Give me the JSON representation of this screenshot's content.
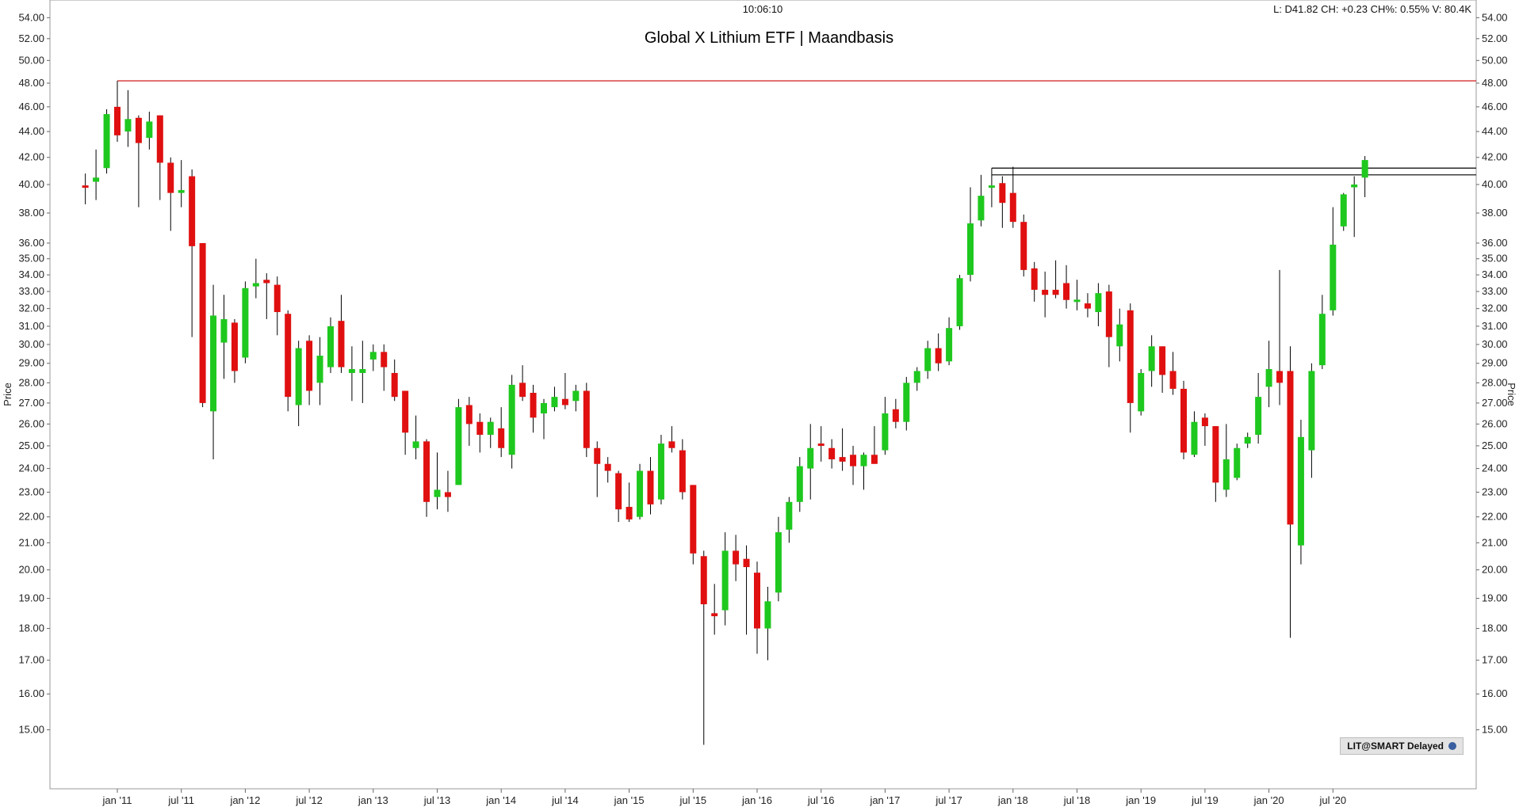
{
  "header": {
    "time": "10:06:10",
    "info": "L: D41.82 CH: +0.23 CH%: 0.55% V: 80.4K"
  },
  "badge": {
    "label": "LIT@SMART Delayed",
    "icon": "globe-icon"
  },
  "chart_data": {
    "type": "candlestick",
    "title": "Global X Lithium ETF | Maandbasis",
    "xlabel": "",
    "ylabel": "Price",
    "scale": "log",
    "ylim": [
      14.2,
      54.8
    ],
    "grid": false,
    "y_ticks": [
      "54.00",
      "52.00",
      "50.00",
      "48.00",
      "46.00",
      "44.00",
      "42.00",
      "40.00",
      "38.00",
      "36.00",
      "35.00",
      "34.00",
      "33.00",
      "32.00",
      "31.00",
      "30.00",
      "29.00",
      "28.00",
      "27.00",
      "26.00",
      "25.00",
      "24.00",
      "23.00",
      "22.00",
      "21.00",
      "20.00",
      "19.00",
      "18.00",
      "17.00",
      "16.00",
      "15.00"
    ],
    "x_tick_labels": [
      {
        "label": "jan '11",
        "month": 0
      },
      {
        "label": "jul '11",
        "month": 6
      },
      {
        "label": "jan '12",
        "month": 12
      },
      {
        "label": "jul '12",
        "month": 18
      },
      {
        "label": "jan '13",
        "month": 24
      },
      {
        "label": "jul '13",
        "month": 30
      },
      {
        "label": "jan '14",
        "month": 36
      },
      {
        "label": "jul '14",
        "month": 42
      },
      {
        "label": "jan '15",
        "month": 48
      },
      {
        "label": "jul '15",
        "month": 54
      },
      {
        "label": "jan '16",
        "month": 60
      },
      {
        "label": "jul '16",
        "month": 66
      },
      {
        "label": "jan '17",
        "month": 72
      },
      {
        "label": "jul '17",
        "month": 78
      },
      {
        "label": "jan '18",
        "month": 84
      },
      {
        "label": "jul '18",
        "month": 90
      },
      {
        "label": "jan '19",
        "month": 96
      },
      {
        "label": "jul '19",
        "month": 102
      },
      {
        "label": "jan '20",
        "month": 108
      },
      {
        "label": "jul '20",
        "month": 114
      }
    ],
    "colors": {
      "up": "#1ec81e",
      "down": "#e01010",
      "wick": "#000000",
      "resistance": "#cc0000",
      "level": "#000000"
    },
    "horizontal_lines": [
      {
        "value": 48.2,
        "from_month": 0,
        "color": "#cc0000"
      },
      {
        "value": 41.2,
        "from_month": 82,
        "color": "#000000"
      },
      {
        "value": 40.7,
        "from_month": 82,
        "color": "#000000"
      }
    ],
    "candles": [
      {
        "month": -3,
        "o": 39.9,
        "h": 40.8,
        "l": 38.6,
        "c": 39.8
      },
      {
        "month": -2,
        "o": 40.2,
        "h": 42.6,
        "l": 38.9,
        "c": 40.5
      },
      {
        "month": -1,
        "o": 41.2,
        "h": 45.8,
        "l": 40.8,
        "c": 45.4
      },
      {
        "month": 0,
        "o": 46.0,
        "h": 48.2,
        "l": 43.2,
        "c": 43.7
      },
      {
        "month": 1,
        "o": 44.0,
        "h": 47.4,
        "l": 42.8,
        "c": 45.0
      },
      {
        "month": 2,
        "o": 45.1,
        "h": 45.3,
        "l": 38.4,
        "c": 43.1
      },
      {
        "month": 3,
        "o": 43.5,
        "h": 45.6,
        "l": 42.6,
        "c": 44.8
      },
      {
        "month": 4,
        "o": 45.3,
        "h": 45.3,
        "l": 38.9,
        "c": 41.6
      },
      {
        "month": 5,
        "o": 41.6,
        "h": 42.0,
        "l": 36.8,
        "c": 39.4
      },
      {
        "month": 6,
        "o": 39.4,
        "h": 41.8,
        "l": 38.4,
        "c": 39.6
      },
      {
        "month": 7,
        "o": 40.6,
        "h": 41.1,
        "l": 30.4,
        "c": 35.8
      },
      {
        "month": 8,
        "o": 36.0,
        "h": 36.0,
        "l": 26.8,
        "c": 27.0
      },
      {
        "month": 9,
        "o": 26.6,
        "h": 33.4,
        "l": 24.4,
        "c": 31.6
      },
      {
        "month": 10,
        "o": 30.1,
        "h": 32.8,
        "l": 28.2,
        "c": 31.4
      },
      {
        "month": 11,
        "o": 31.2,
        "h": 31.4,
        "l": 28.0,
        "c": 28.6
      },
      {
        "month": 12,
        "o": 29.3,
        "h": 33.6,
        "l": 29.0,
        "c": 33.2
      },
      {
        "month": 13,
        "o": 33.3,
        "h": 35.0,
        "l": 32.6,
        "c": 33.5
      },
      {
        "month": 14,
        "o": 33.7,
        "h": 34.1,
        "l": 31.4,
        "c": 33.5
      },
      {
        "month": 15,
        "o": 33.4,
        "h": 33.9,
        "l": 30.5,
        "c": 31.8
      },
      {
        "month": 16,
        "o": 31.7,
        "h": 31.9,
        "l": 26.6,
        "c": 27.3
      },
      {
        "month": 17,
        "o": 26.9,
        "h": 30.2,
        "l": 25.9,
        "c": 29.8
      },
      {
        "month": 18,
        "o": 30.2,
        "h": 30.5,
        "l": 26.9,
        "c": 27.6
      },
      {
        "month": 19,
        "o": 28.0,
        "h": 30.4,
        "l": 26.9,
        "c": 29.4
      },
      {
        "month": 20,
        "o": 28.8,
        "h": 31.5,
        "l": 28.5,
        "c": 31.0
      },
      {
        "month": 21,
        "o": 31.3,
        "h": 32.8,
        "l": 28.5,
        "c": 28.8
      },
      {
        "month": 22,
        "o": 28.5,
        "h": 29.9,
        "l": 27.1,
        "c": 28.7
      },
      {
        "month": 23,
        "o": 28.5,
        "h": 30.2,
        "l": 27.0,
        "c": 28.7
      },
      {
        "month": 24,
        "o": 29.2,
        "h": 30.0,
        "l": 28.6,
        "c": 29.6
      },
      {
        "month": 25,
        "o": 29.6,
        "h": 30.0,
        "l": 27.6,
        "c": 28.8
      },
      {
        "month": 26,
        "o": 28.5,
        "h": 29.2,
        "l": 27.1,
        "c": 27.3
      },
      {
        "month": 27,
        "o": 27.6,
        "h": 27.6,
        "l": 24.6,
        "c": 25.6
      },
      {
        "month": 28,
        "o": 24.9,
        "h": 26.4,
        "l": 24.4,
        "c": 25.2
      },
      {
        "month": 29,
        "o": 25.2,
        "h": 25.3,
        "l": 22.0,
        "c": 22.6
      },
      {
        "month": 30,
        "o": 22.8,
        "h": 24.7,
        "l": 22.3,
        "c": 23.1
      },
      {
        "month": 31,
        "o": 23.0,
        "h": 23.9,
        "l": 22.2,
        "c": 22.8
      },
      {
        "month": 32,
        "o": 23.3,
        "h": 27.2,
        "l": 23.3,
        "c": 26.8
      },
      {
        "month": 33,
        "o": 26.9,
        "h": 27.3,
        "l": 25.0,
        "c": 26.0
      },
      {
        "month": 34,
        "o": 26.1,
        "h": 26.5,
        "l": 24.7,
        "c": 25.5
      },
      {
        "month": 35,
        "o": 25.5,
        "h": 26.3,
        "l": 24.9,
        "c": 26.1
      },
      {
        "month": 36,
        "o": 25.8,
        "h": 26.8,
        "l": 24.5,
        "c": 24.9
      },
      {
        "month": 37,
        "o": 24.6,
        "h": 28.4,
        "l": 24.0,
        "c": 27.9
      },
      {
        "month": 38,
        "o": 28.0,
        "h": 28.9,
        "l": 27.1,
        "c": 27.3
      },
      {
        "month": 39,
        "o": 27.5,
        "h": 27.9,
        "l": 25.6,
        "c": 26.3
      },
      {
        "month": 40,
        "o": 26.5,
        "h": 27.2,
        "l": 25.3,
        "c": 27.0
      },
      {
        "month": 41,
        "o": 26.8,
        "h": 27.8,
        "l": 26.6,
        "c": 27.3
      },
      {
        "month": 42,
        "o": 27.2,
        "h": 28.5,
        "l": 26.7,
        "c": 26.9
      },
      {
        "month": 43,
        "o": 27.1,
        "h": 27.9,
        "l": 26.6,
        "c": 27.6
      },
      {
        "month": 44,
        "o": 27.6,
        "h": 28.0,
        "l": 24.5,
        "c": 24.9
      },
      {
        "month": 45,
        "o": 24.9,
        "h": 25.2,
        "l": 22.8,
        "c": 24.2
      },
      {
        "month": 46,
        "o": 24.2,
        "h": 24.5,
        "l": 23.4,
        "c": 23.9
      },
      {
        "month": 47,
        "o": 23.8,
        "h": 23.9,
        "l": 21.8,
        "c": 22.3
      },
      {
        "month": 48,
        "o": 22.4,
        "h": 23.4,
        "l": 21.8,
        "c": 21.9
      },
      {
        "month": 49,
        "o": 22.0,
        "h": 24.2,
        "l": 21.9,
        "c": 23.9
      },
      {
        "month": 50,
        "o": 23.9,
        "h": 24.5,
        "l": 22.1,
        "c": 22.5
      },
      {
        "month": 51,
        "o": 22.7,
        "h": 25.5,
        "l": 22.5,
        "c": 25.1
      },
      {
        "month": 52,
        "o": 25.2,
        "h": 25.9,
        "l": 24.7,
        "c": 24.9
      },
      {
        "month": 53,
        "o": 24.8,
        "h": 25.3,
        "l": 22.7,
        "c": 23.0
      },
      {
        "month": 54,
        "o": 23.3,
        "h": 23.3,
        "l": 20.2,
        "c": 20.6
      },
      {
        "month": 55,
        "o": 20.5,
        "h": 20.7,
        "l": 14.6,
        "c": 18.8
      },
      {
        "month": 56,
        "o": 18.5,
        "h": 19.5,
        "l": 17.8,
        "c": 18.4
      },
      {
        "month": 57,
        "o": 18.6,
        "h": 21.4,
        "l": 18.1,
        "c": 20.7
      },
      {
        "month": 58,
        "o": 20.7,
        "h": 21.3,
        "l": 19.6,
        "c": 20.2
      },
      {
        "month": 59,
        "o": 20.4,
        "h": 20.9,
        "l": 17.8,
        "c": 20.1
      },
      {
        "month": 60,
        "o": 19.9,
        "h": 20.3,
        "l": 17.2,
        "c": 18.0
      },
      {
        "month": 61,
        "o": 18.0,
        "h": 19.4,
        "l": 17.0,
        "c": 18.9
      },
      {
        "month": 62,
        "o": 19.2,
        "h": 22.0,
        "l": 18.9,
        "c": 21.4
      },
      {
        "month": 63,
        "o": 21.5,
        "h": 22.8,
        "l": 21.0,
        "c": 22.6
      },
      {
        "month": 64,
        "o": 22.6,
        "h": 24.5,
        "l": 22.2,
        "c": 24.1
      },
      {
        "month": 65,
        "o": 24.0,
        "h": 26.0,
        "l": 22.7,
        "c": 24.9
      },
      {
        "month": 66,
        "o": 25.1,
        "h": 25.9,
        "l": 24.3,
        "c": 25.0
      },
      {
        "month": 67,
        "o": 24.9,
        "h": 25.3,
        "l": 24.0,
        "c": 24.4
      },
      {
        "month": 68,
        "o": 24.5,
        "h": 25.8,
        "l": 23.9,
        "c": 24.3
      },
      {
        "month": 69,
        "o": 24.6,
        "h": 25.0,
        "l": 23.3,
        "c": 24.1
      },
      {
        "month": 70,
        "o": 24.1,
        "h": 24.7,
        "l": 23.1,
        "c": 24.6
      },
      {
        "month": 71,
        "o": 24.6,
        "h": 25.9,
        "l": 24.2,
        "c": 24.2
      },
      {
        "month": 72,
        "o": 24.8,
        "h": 27.3,
        "l": 24.6,
        "c": 26.5
      },
      {
        "month": 73,
        "o": 26.7,
        "h": 27.2,
        "l": 25.8,
        "c": 26.1
      },
      {
        "month": 74,
        "o": 26.1,
        "h": 28.3,
        "l": 25.7,
        "c": 28.0
      },
      {
        "month": 75,
        "o": 28.0,
        "h": 28.8,
        "l": 27.6,
        "c": 28.6
      },
      {
        "month": 76,
        "o": 28.6,
        "h": 30.2,
        "l": 28.2,
        "c": 29.8
      },
      {
        "month": 77,
        "o": 29.8,
        "h": 30.6,
        "l": 28.6,
        "c": 29.0
      },
      {
        "month": 78,
        "o": 29.1,
        "h": 31.5,
        "l": 28.9,
        "c": 30.9
      },
      {
        "month": 79,
        "o": 31.0,
        "h": 34.0,
        "l": 30.8,
        "c": 33.8
      },
      {
        "month": 80,
        "o": 34.0,
        "h": 39.8,
        "l": 33.6,
        "c": 37.3
      },
      {
        "month": 81,
        "o": 37.5,
        "h": 40.7,
        "l": 37.1,
        "c": 39.2
      },
      {
        "month": 82,
        "o": 39.8,
        "h": 41.2,
        "l": 38.4,
        "c": 39.9
      },
      {
        "month": 83,
        "o": 40.1,
        "h": 40.6,
        "l": 37.0,
        "c": 38.7
      },
      {
        "month": 84,
        "o": 39.4,
        "h": 41.3,
        "l": 37.0,
        "c": 37.4
      },
      {
        "month": 85,
        "o": 37.4,
        "h": 37.9,
        "l": 33.9,
        "c": 34.3
      },
      {
        "month": 86,
        "o": 34.4,
        "h": 34.8,
        "l": 32.4,
        "c": 33.1
      },
      {
        "month": 87,
        "o": 33.1,
        "h": 34.2,
        "l": 31.5,
        "c": 32.8
      },
      {
        "month": 88,
        "o": 33.1,
        "h": 34.9,
        "l": 32.6,
        "c": 32.8
      },
      {
        "month": 89,
        "o": 33.5,
        "h": 34.6,
        "l": 32.0,
        "c": 32.5
      },
      {
        "month": 90,
        "o": 32.4,
        "h": 33.7,
        "l": 31.9,
        "c": 32.5
      },
      {
        "month": 91,
        "o": 32.3,
        "h": 32.9,
        "l": 31.5,
        "c": 32.0
      },
      {
        "month": 92,
        "o": 31.8,
        "h": 33.5,
        "l": 31.0,
        "c": 32.9
      },
      {
        "month": 93,
        "o": 33.0,
        "h": 33.4,
        "l": 28.8,
        "c": 30.4
      },
      {
        "month": 94,
        "o": 29.9,
        "h": 32.0,
        "l": 29.1,
        "c": 31.1
      },
      {
        "month": 95,
        "o": 31.9,
        "h": 32.3,
        "l": 25.6,
        "c": 27.0
      },
      {
        "month": 96,
        "o": 26.6,
        "h": 28.7,
        "l": 26.4,
        "c": 28.5
      },
      {
        "month": 97,
        "o": 28.6,
        "h": 30.5,
        "l": 27.8,
        "c": 29.9
      },
      {
        "month": 98,
        "o": 29.9,
        "h": 29.9,
        "l": 27.5,
        "c": 28.4
      },
      {
        "month": 99,
        "o": 28.6,
        "h": 29.6,
        "l": 27.4,
        "c": 27.7
      },
      {
        "month": 100,
        "o": 27.7,
        "h": 28.1,
        "l": 24.4,
        "c": 24.7
      },
      {
        "month": 101,
        "o": 24.6,
        "h": 26.6,
        "l": 24.5,
        "c": 26.1
      },
      {
        "month": 102,
        "o": 26.3,
        "h": 26.5,
        "l": 25.0,
        "c": 25.9
      },
      {
        "month": 103,
        "o": 25.9,
        "h": 25.9,
        "l": 22.6,
        "c": 23.4
      },
      {
        "month": 104,
        "o": 23.1,
        "h": 26.0,
        "l": 22.8,
        "c": 24.4
      },
      {
        "month": 105,
        "o": 23.6,
        "h": 25.1,
        "l": 23.5,
        "c": 24.9
      },
      {
        "month": 106,
        "o": 25.1,
        "h": 25.6,
        "l": 24.9,
        "c": 25.4
      },
      {
        "month": 107,
        "o": 25.5,
        "h": 28.5,
        "l": 25.1,
        "c": 27.3
      },
      {
        "month": 108,
        "o": 27.8,
        "h": 30.2,
        "l": 26.8,
        "c": 28.7
      },
      {
        "month": 109,
        "o": 28.6,
        "h": 34.3,
        "l": 26.9,
        "c": 28.0
      },
      {
        "month": 110,
        "o": 28.6,
        "h": 29.9,
        "l": 17.7,
        "c": 21.7
      },
      {
        "month": 111,
        "o": 20.9,
        "h": 26.2,
        "l": 20.2,
        "c": 25.4
      },
      {
        "month": 112,
        "o": 24.8,
        "h": 29.0,
        "l": 23.6,
        "c": 28.6
      },
      {
        "month": 113,
        "o": 28.9,
        "h": 32.8,
        "l": 28.7,
        "c": 31.7
      },
      {
        "month": 114,
        "o": 31.9,
        "h": 38.4,
        "l": 31.6,
        "c": 35.9
      },
      {
        "month": 115,
        "o": 37.1,
        "h": 39.4,
        "l": 36.8,
        "c": 39.3
      },
      {
        "month": 116,
        "o": 39.8,
        "h": 40.6,
        "l": 36.4,
        "c": 40.0
      },
      {
        "month": 117,
        "o": 40.5,
        "h": 42.1,
        "l": 39.1,
        "c": 41.8
      }
    ]
  }
}
